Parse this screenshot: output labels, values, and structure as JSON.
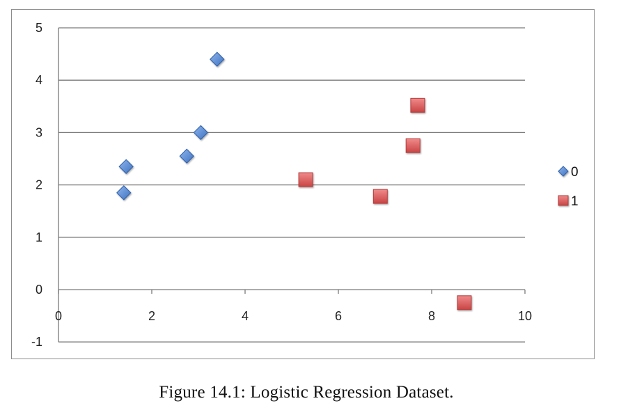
{
  "chart_data": {
    "type": "scatter",
    "xlim": [
      0,
      10
    ],
    "ylim": [
      -1,
      5
    ],
    "x_ticks": [
      0,
      2,
      4,
      6,
      8,
      10
    ],
    "y_ticks": [
      -1,
      0,
      1,
      2,
      3,
      4,
      5
    ],
    "grid": "horizontal",
    "legend_position": "right",
    "series": [
      {
        "name": "0",
        "marker": "diamond",
        "color": "#5b8fd6",
        "points": [
          {
            "x": 1.4,
            "y": 1.85
          },
          {
            "x": 1.45,
            "y": 2.35
          },
          {
            "x": 2.75,
            "y": 2.55
          },
          {
            "x": 3.05,
            "y": 3.0
          },
          {
            "x": 3.4,
            "y": 4.4
          }
        ]
      },
      {
        "name": "1",
        "marker": "square",
        "color": "#e06060",
        "points": [
          {
            "x": 5.3,
            "y": 2.1
          },
          {
            "x": 6.9,
            "y": 1.78
          },
          {
            "x": 7.6,
            "y": 2.75
          },
          {
            "x": 7.7,
            "y": 3.52
          },
          {
            "x": 8.7,
            "y": -0.25
          }
        ]
      }
    ]
  },
  "caption": "Figure 14.1: Logistic Regression Dataset."
}
